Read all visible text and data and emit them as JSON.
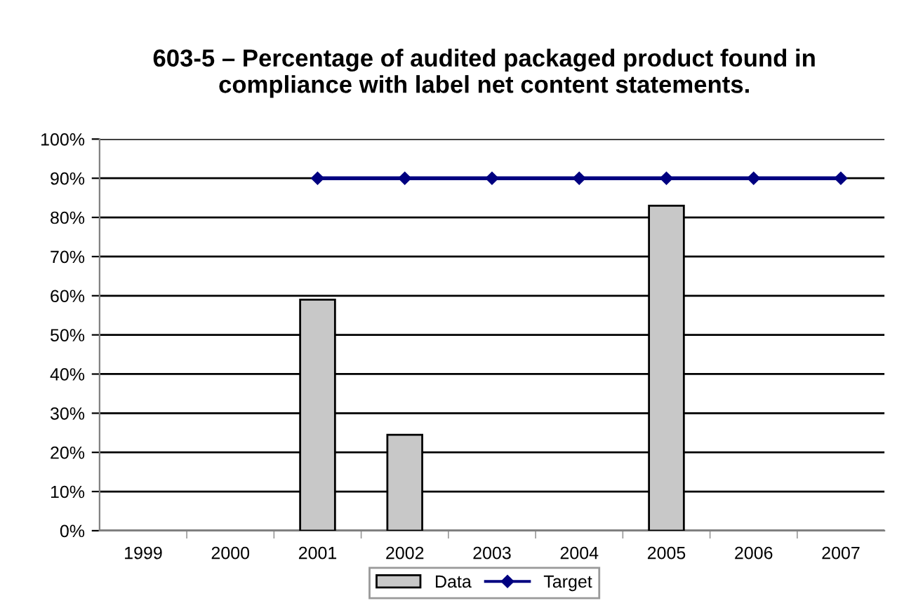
{
  "chart_data": {
    "type": "bar",
    "title": "603-5 – Percentage of audited packaged product found in\ncompliance with label net content statements.",
    "categories": [
      "1999",
      "2000",
      "2001",
      "2002",
      "2003",
      "2004",
      "2005",
      "2006",
      "2007"
    ],
    "series": [
      {
        "name": "Data",
        "color": "#c8c8c8",
        "values": [
          null,
          null,
          59,
          24.5,
          null,
          null,
          83,
          null,
          null
        ]
      },
      {
        "name": "Target",
        "type": "line",
        "color": "#000080",
        "marker": "diamond",
        "values": [
          null,
          null,
          90,
          90,
          90,
          90,
          90,
          90,
          90
        ]
      }
    ],
    "ylim": [
      0,
      100
    ],
    "yticks": [
      {
        "value": 0,
        "label": "0%"
      },
      {
        "value": 10,
        "label": "10%"
      },
      {
        "value": 20,
        "label": "20%"
      },
      {
        "value": 30,
        "label": "30%"
      },
      {
        "value": 40,
        "label": "40%"
      },
      {
        "value": 50,
        "label": "50%"
      },
      {
        "value": 60,
        "label": "60%"
      },
      {
        "value": 70,
        "label": "70%"
      },
      {
        "value": 80,
        "label": "80%"
      },
      {
        "value": 90,
        "label": "90%"
      },
      {
        "value": 100,
        "label": "100%"
      }
    ],
    "grid": "y",
    "legend": "bottom"
  }
}
